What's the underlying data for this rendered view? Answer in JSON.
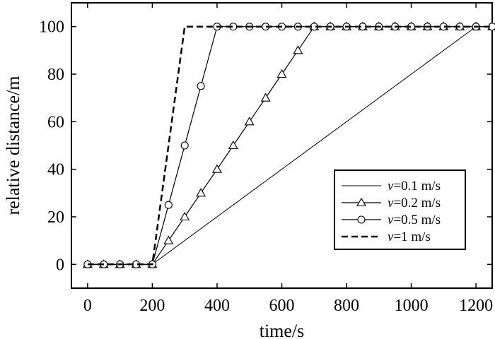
{
  "chart_data": {
    "type": "line",
    "xlabel": "time/s",
    "ylabel": "relative distance/m",
    "xlim": [
      -50,
      1250
    ],
    "ylim": [
      -10,
      110
    ],
    "xticks": [
      0,
      200,
      400,
      600,
      800,
      1000,
      1200
    ],
    "yticks": [
      0,
      20,
      40,
      60,
      80,
      100
    ],
    "grid": false,
    "legend_position": "bottom-right",
    "series": [
      {
        "name": "v=0.1 m/s",
        "legend_var": "v",
        "legend_rest": "=0.1 m/s",
        "style": "thin-solid",
        "marker": "none",
        "x": [
          0,
          200,
          1200,
          1250
        ],
        "y": [
          0,
          0,
          100,
          100
        ]
      },
      {
        "name": "v=0.2 m/s",
        "legend_var": "v",
        "legend_rest": "=0.2 m/s",
        "style": "solid",
        "marker": "triangle",
        "x": [
          0,
          50,
          100,
          150,
          200,
          250,
          300,
          350,
          400,
          450,
          500,
          550,
          600,
          650,
          700,
          750,
          800,
          850,
          900,
          950,
          1000,
          1050,
          1100,
          1150,
          1200,
          1250
        ],
        "y": [
          0,
          0,
          0,
          0,
          0,
          10,
          20,
          30,
          40,
          50,
          60,
          70,
          80,
          90,
          100,
          100,
          100,
          100,
          100,
          100,
          100,
          100,
          100,
          100,
          100,
          100
        ]
      },
      {
        "name": "v=0.5 m/s",
        "legend_var": "v",
        "legend_rest": "=0.5 m/s",
        "style": "solid",
        "marker": "circle",
        "x": [
          0,
          50,
          100,
          150,
          200,
          250,
          300,
          350,
          400,
          450,
          500,
          550,
          600,
          650,
          700,
          750,
          800,
          850,
          900,
          950,
          1000,
          1050,
          1100,
          1150,
          1200,
          1250
        ],
        "y": [
          0,
          0,
          0,
          0,
          0,
          25,
          50,
          75,
          100,
          100,
          100,
          100,
          100,
          100,
          100,
          100,
          100,
          100,
          100,
          100,
          100,
          100,
          100,
          100,
          100,
          100
        ]
      },
      {
        "name": "v=1 m/s",
        "legend_var": "v",
        "legend_rest": "=1 m/s",
        "style": "dashed",
        "marker": "none",
        "x": [
          0,
          200,
          300,
          1250
        ],
        "y": [
          0,
          0,
          100,
          100
        ]
      }
    ]
  }
}
